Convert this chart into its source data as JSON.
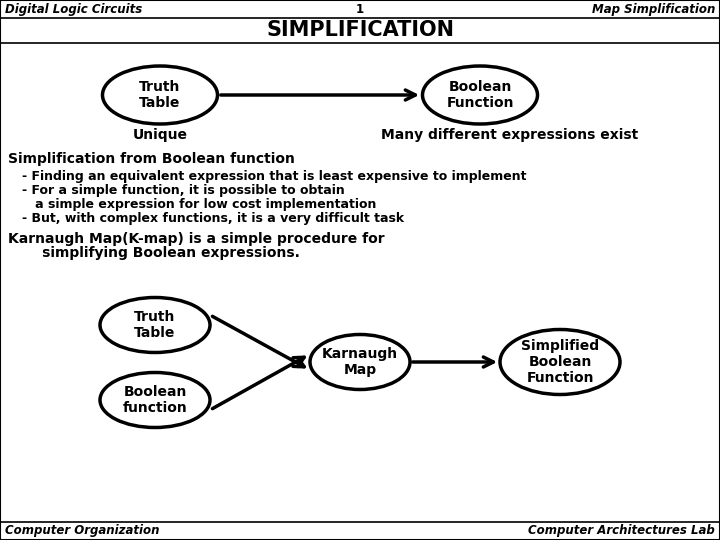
{
  "header_left": "Digital Logic Circuits",
  "header_center": "1",
  "header_right": "Map Simplification",
  "title": "SIMPLIFICATION",
  "truth_table_label": "Truth\nTable",
  "boolean_func_label": "Boolean\nFunction",
  "unique_label": "Unique",
  "many_expr_label": "Many different expressions exist",
  "simplification_heading": "Simplification from Boolean function",
  "bullet1": "- Finding an equivalent expression that is least expensive to implement",
  "bullet2": "- For a simple function, it is possible to obtain",
  "bullet3": "   a simple expression for low cost implementation",
  "bullet4": "- But, with complex functions, it is a very difficult task",
  "karnaugh_text1": "Karnaugh Map(K-map) is a simple procedure for",
  "karnaugh_text2": "       simplifying Boolean expressions.",
  "ellipse1_label": "Truth\nTable",
  "ellipse2_label": "Karnaugh\nMap",
  "ellipse3_label": "Simplified\nBoolean\nFunction",
  "ellipse4_label": "Boolean\nfunction",
  "footer_left": "Computer Organization",
  "footer_right": "Computer Architectures Lab",
  "bg_color": "#ffffff",
  "text_color": "#000000"
}
